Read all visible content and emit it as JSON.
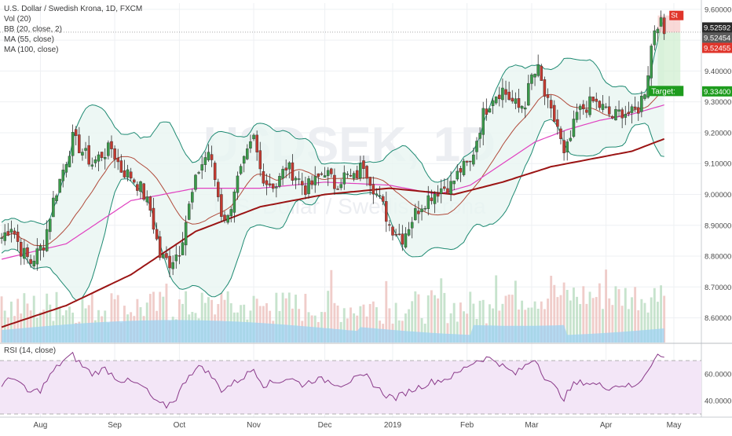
{
  "chart_data": {
    "type": "candlestick",
    "symbol": "USDSEK, 1D",
    "watermark_main": "USDSEK, 1D",
    "watermark_sub": "U.S. Dollar / Swedish Krona",
    "legend": {
      "title": "U.S. Dollar / Swedish Krona, 1D, FXCM",
      "vol": "Vol (20)",
      "bb": "BB (20, close, 2)",
      "ma55": "MA (55, close)",
      "ma100": "MA (100, close)"
    },
    "price_axis": {
      "min": 8.52,
      "max": 9.62,
      "ticks": [
        "9.60000",
        "9.50000",
        "9.40000",
        "9.30000",
        "9.20000",
        "9.10000",
        "9.00000",
        "8.90000",
        "8.80000",
        "8.70000",
        "8.60000"
      ]
    },
    "time_axis": {
      "labels": [
        {
          "label": "Aug",
          "bar": 12
        },
        {
          "label": "Sep",
          "bar": 35
        },
        {
          "label": "Oct",
          "bar": 55
        },
        {
          "label": "Nov",
          "bar": 78
        },
        {
          "label": "Dec",
          "bar": 100
        },
        {
          "label": "2019",
          "bar": 121
        },
        {
          "label": "Feb",
          "bar": 144
        },
        {
          "label": "Mar",
          "bar": 164
        },
        {
          "label": "Apr",
          "bar": 187
        },
        {
          "label": "May",
          "bar": 208
        }
      ],
      "total_bars": 217
    },
    "close_path": [
      [
        0,
        8.86
      ],
      [
        3,
        8.9
      ],
      [
        6,
        8.82
      ],
      [
        9,
        8.78
      ],
      [
        13,
        8.84
      ],
      [
        16,
        8.98
      ],
      [
        19,
        9.08
      ],
      [
        22,
        9.18
      ],
      [
        25,
        9.14
      ],
      [
        28,
        9.1
      ],
      [
        31,
        9.13
      ],
      [
        34,
        9.15
      ],
      [
        37,
        9.08
      ],
      [
        40,
        9.06
      ],
      [
        43,
        9.02
      ],
      [
        46,
        8.95
      ],
      [
        49,
        8.8
      ],
      [
        52,
        8.78
      ],
      [
        55,
        8.82
      ],
      [
        58,
        8.96
      ],
      [
        61,
        9.08
      ],
      [
        64,
        9.14
      ],
      [
        66,
        9.05
      ],
      [
        68,
        8.94
      ],
      [
        70,
        8.92
      ],
      [
        72,
        9.02
      ],
      [
        75,
        9.1
      ],
      [
        78,
        9.18
      ],
      [
        80,
        9.08
      ],
      [
        82,
        9.04
      ],
      [
        85,
        9.03
      ],
      [
        88,
        9.09
      ],
      [
        91,
        9.06
      ],
      [
        94,
        9.02
      ],
      [
        97,
        9.04
      ],
      [
        100,
        9.08
      ],
      [
        103,
        9.03
      ],
      [
        106,
        9.06
      ],
      [
        109,
        9.05
      ],
      [
        112,
        9.1
      ],
      [
        114,
        9.05
      ],
      [
        116,
        9.0
      ],
      [
        118,
        8.96
      ],
      [
        120,
        8.9
      ],
      [
        122,
        8.88
      ],
      [
        124,
        8.86
      ],
      [
        126,
        8.9
      ],
      [
        128,
        8.94
      ],
      [
        130,
        8.97
      ],
      [
        133,
        9.0
      ],
      [
        136,
        9.02
      ],
      [
        139,
        9.03
      ],
      [
        142,
        9.08
      ],
      [
        145,
        9.1
      ],
      [
        147,
        9.18
      ],
      [
        149,
        9.26
      ],
      [
        152,
        9.32
      ],
      [
        155,
        9.34
      ],
      [
        158,
        9.3
      ],
      [
        160,
        9.28
      ],
      [
        162,
        9.3
      ],
      [
        164,
        9.38
      ],
      [
        166,
        9.4
      ],
      [
        168,
        9.32
      ],
      [
        170,
        9.26
      ],
      [
        172,
        9.22
      ],
      [
        174,
        9.12
      ],
      [
        176,
        9.18
      ],
      [
        178,
        9.26
      ],
      [
        180,
        9.28
      ],
      [
        183,
        9.3
      ],
      [
        186,
        9.28
      ],
      [
        189,
        9.25
      ],
      [
        192,
        9.27
      ],
      [
        195,
        9.26
      ],
      [
        197,
        9.28
      ],
      [
        199,
        9.34
      ],
      [
        200,
        9.4
      ],
      [
        201,
        9.48
      ],
      [
        202,
        9.54
      ],
      [
        203,
        9.56
      ],
      [
        204,
        9.55
      ],
      [
        205,
        9.52
      ]
    ],
    "volume_shown": true,
    "ma55_path": [
      [
        0,
        8.79
      ],
      [
        20,
        8.84
      ],
      [
        40,
        8.98
      ],
      [
        60,
        9.02
      ],
      [
        80,
        9.02
      ],
      [
        100,
        9.04
      ],
      [
        120,
        9.03
      ],
      [
        135,
        9.0
      ],
      [
        145,
        9.03
      ],
      [
        155,
        9.1
      ],
      [
        165,
        9.17
      ],
      [
        175,
        9.21
      ],
      [
        185,
        9.24
      ],
      [
        195,
        9.26
      ],
      [
        205,
        9.29
      ]
    ],
    "ma100_path": [
      [
        0,
        8.57
      ],
      [
        20,
        8.64
      ],
      [
        40,
        8.74
      ],
      [
        60,
        8.88
      ],
      [
        80,
        8.96
      ],
      [
        100,
        9.0
      ],
      [
        120,
        9.02
      ],
      [
        140,
        9.0
      ],
      [
        155,
        9.04
      ],
      [
        170,
        9.09
      ],
      [
        185,
        9.12
      ],
      [
        195,
        9.14
      ],
      [
        205,
        9.18
      ]
    ],
    "bb_width": 0.2,
    "rsi": {
      "label": "RSI (14, close)",
      "min": 30,
      "max": 80,
      "ticks": [
        "60.0000",
        "40.0000"
      ],
      "upper_band": 70,
      "lower_band": 30,
      "values": [
        [
          0,
          52
        ],
        [
          4,
          58
        ],
        [
          8,
          46
        ],
        [
          12,
          48
        ],
        [
          16,
          62
        ],
        [
          19,
          70
        ],
        [
          22,
          74
        ],
        [
          25,
          66
        ],
        [
          28,
          60
        ],
        [
          32,
          64
        ],
        [
          36,
          56
        ],
        [
          40,
          54
        ],
        [
          44,
          50
        ],
        [
          48,
          38
        ],
        [
          51,
          36
        ],
        [
          54,
          42
        ],
        [
          58,
          60
        ],
        [
          62,
          66
        ],
        [
          65,
          58
        ],
        [
          68,
          48
        ],
        [
          71,
          52
        ],
        [
          75,
          58
        ],
        [
          78,
          64
        ],
        [
          81,
          52
        ],
        [
          85,
          54
        ],
        [
          89,
          57
        ],
        [
          93,
          52
        ],
        [
          97,
          56
        ],
        [
          101,
          55
        ],
        [
          105,
          52
        ],
        [
          109,
          56
        ],
        [
          113,
          58
        ],
        [
          116,
          50
        ],
        [
          119,
          44
        ],
        [
          122,
          42
        ],
        [
          125,
          46
        ],
        [
          129,
          50
        ],
        [
          133,
          54
        ],
        [
          137,
          56
        ],
        [
          141,
          60
        ],
        [
          144,
          66
        ],
        [
          147,
          70
        ],
        [
          150,
          72
        ],
        [
          153,
          70
        ],
        [
          156,
          64
        ],
        [
          159,
          60
        ],
        [
          162,
          66
        ],
        [
          165,
          72
        ],
        [
          168,
          58
        ],
        [
          171,
          50
        ],
        [
          174,
          42
        ],
        [
          177,
          52
        ],
        [
          180,
          54
        ],
        [
          184,
          52
        ],
        [
          188,
          50
        ],
        [
          192,
          52
        ],
        [
          196,
          50
        ],
        [
          199,
          60
        ],
        [
          201,
          68
        ],
        [
          203,
          74
        ],
        [
          205,
          72
        ]
      ]
    },
    "price_tags": [
      {
        "label": "9.52592",
        "value": 9.52592,
        "color": "#2a2a2a"
      },
      {
        "label": "9.52454",
        "value": 9.52454,
        "color": "#5c5c5c"
      },
      {
        "label": "9.52455",
        "value": 9.52455,
        "color": "#e0352b"
      },
      {
        "label": "9.33400",
        "value": 9.334,
        "color": "#1e9c1e"
      }
    ],
    "position_box": {
      "stop_label": "St",
      "target_label": "Target:",
      "entry": 9.525,
      "target": 9.334,
      "stop": 9.58
    },
    "colors": {
      "up": "#3a9a4a",
      "down": "#c23a30",
      "bb": "#1e8a72",
      "bb_fill": "#e8f5f1",
      "ma55": "#e040c0",
      "ma100": "#9b1414",
      "vol_ma": "#9ed2f2",
      "rsi_line": "#8a3a8a",
      "rsi_fill": "#f3e6f7"
    }
  }
}
